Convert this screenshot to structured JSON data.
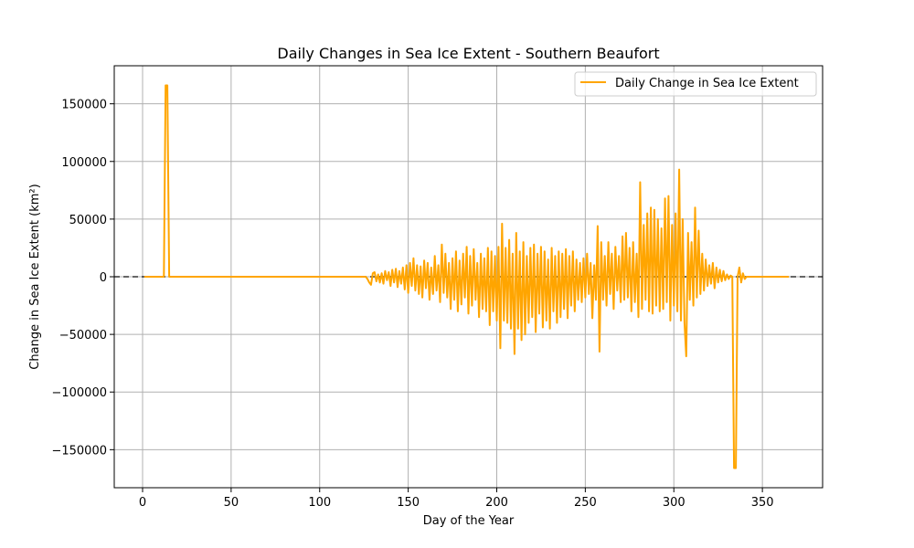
{
  "chart_data": {
    "type": "line",
    "title": "Daily Changes in Sea Ice Extent - Southern Beaufort",
    "xlabel": "Day of the Year",
    "ylabel": "Change in Sea Ice Extent (km²)",
    "xlim": [
      -16,
      384
    ],
    "ylim": [
      -183000,
      183000
    ],
    "xticks": [
      0,
      50,
      100,
      150,
      200,
      250,
      300,
      350
    ],
    "xtick_labels": [
      "0",
      "50",
      "100",
      "150",
      "200",
      "250",
      "300",
      "350"
    ],
    "yticks": [
      150000,
      100000,
      50000,
      0,
      -50000,
      -100000,
      -150000
    ],
    "ytick_labels": [
      "150000",
      "100000",
      "50000",
      "0",
      "−50000",
      "−100000",
      "−150000"
    ],
    "grid": true,
    "legend_position": "top-right",
    "reference_line": {
      "y": 0,
      "style": "dashed",
      "color": "#333333"
    },
    "series": [
      {
        "name": "Daily Change in Sea Ice Extent",
        "color": "#FFA500",
        "x": [
          1,
          2,
          3,
          4,
          5,
          6,
          7,
          8,
          9,
          10,
          11,
          12,
          13,
          14,
          15,
          16,
          17,
          18,
          19,
          20,
          40,
          60,
          80,
          100,
          120,
          126,
          127,
          128,
          129,
          130,
          131,
          132,
          133,
          134,
          135,
          136,
          137,
          138,
          139,
          140,
          141,
          142,
          143,
          144,
          145,
          146,
          147,
          148,
          149,
          150,
          151,
          152,
          153,
          154,
          155,
          156,
          157,
          158,
          159,
          160,
          161,
          162,
          163,
          164,
          165,
          166,
          167,
          168,
          169,
          170,
          171,
          172,
          173,
          174,
          175,
          176,
          177,
          178,
          179,
          180,
          181,
          182,
          183,
          184,
          185,
          186,
          187,
          188,
          189,
          190,
          191,
          192,
          193,
          194,
          195,
          196,
          197,
          198,
          199,
          200,
          201,
          202,
          203,
          204,
          205,
          206,
          207,
          208,
          209,
          210,
          211,
          212,
          213,
          214,
          215,
          216,
          217,
          218,
          219,
          220,
          221,
          222,
          223,
          224,
          225,
          226,
          227,
          228,
          229,
          230,
          231,
          232,
          233,
          234,
          235,
          236,
          237,
          238,
          239,
          240,
          241,
          242,
          243,
          244,
          245,
          246,
          247,
          248,
          249,
          250,
          251,
          252,
          253,
          254,
          255,
          256,
          257,
          258,
          259,
          260,
          261,
          262,
          263,
          264,
          265,
          266,
          267,
          268,
          269,
          270,
          271,
          272,
          273,
          274,
          275,
          276,
          277,
          278,
          279,
          280,
          281,
          282,
          283,
          284,
          285,
          286,
          287,
          288,
          289,
          290,
          291,
          292,
          293,
          294,
          295,
          296,
          297,
          298,
          299,
          300,
          301,
          302,
          303,
          304,
          305,
          306,
          307,
          308,
          309,
          310,
          311,
          312,
          313,
          314,
          315,
          316,
          317,
          318,
          319,
          320,
          321,
          322,
          323,
          324,
          325,
          326,
          327,
          328,
          329,
          330,
          331,
          332,
          333,
          334,
          335,
          336,
          337,
          338,
          339,
          340,
          341,
          342,
          343,
          344,
          345,
          350,
          355,
          360,
          365
        ],
        "y": [
          0,
          0,
          0,
          0,
          0,
          0,
          0,
          0,
          0,
          0,
          0,
          0,
          166000,
          166000,
          0,
          0,
          0,
          0,
          0,
          0,
          0,
          0,
          0,
          0,
          0,
          0,
          -2000,
          -5000,
          -7000,
          3000,
          4000,
          -4000,
          2000,
          -5000,
          3000,
          -6000,
          5000,
          -3000,
          4000,
          -8000,
          6000,
          -5000,
          7000,
          -9000,
          5000,
          -6000,
          8000,
          -11000,
          10000,
          -14000,
          12000,
          -8000,
          16000,
          -12000,
          10000,
          -15000,
          9000,
          -18000,
          14000,
          -10000,
          12000,
          -20000,
          8000,
          -15000,
          18000,
          -12000,
          10000,
          -22000,
          28000,
          -14000,
          20000,
          -18000,
          12000,
          -28000,
          16000,
          -20000,
          22000,
          -30000,
          14000,
          -24000,
          20000,
          -18000,
          26000,
          -32000,
          18000,
          -25000,
          24000,
          -20000,
          12000,
          -35000,
          20000,
          -28000,
          16000,
          -30000,
          25000,
          -42000,
          22000,
          -30000,
          18000,
          -38000,
          26000,
          -62000,
          46000,
          -38000,
          25000,
          -40000,
          32000,
          -45000,
          20000,
          -67000,
          38000,
          -45000,
          22000,
          -55000,
          30000,
          -50000,
          18000,
          -40000,
          25000,
          -35000,
          28000,
          -48000,
          20000,
          -32000,
          26000,
          -44000,
          22000,
          -38000,
          15000,
          -45000,
          25000,
          -30000,
          18000,
          -40000,
          22000,
          -35000,
          20000,
          -28000,
          24000,
          -36000,
          18000,
          -25000,
          22000,
          -30000,
          15000,
          -20000,
          12000,
          -22000,
          16000,
          -18000,
          20000,
          -15000,
          12000,
          -36000,
          10000,
          -20000,
          44000,
          -65000,
          30000,
          -20000,
          18000,
          -25000,
          30000,
          -15000,
          20000,
          -28000,
          26000,
          -12000,
          18000,
          -22000,
          35000,
          -20000,
          38000,
          -18000,
          25000,
          -30000,
          30000,
          -22000,
          20000,
          -35000,
          82000,
          -28000,
          45000,
          -20000,
          55000,
          -30000,
          60000,
          -32000,
          58000,
          -25000,
          50000,
          -30000,
          42000,
          -28000,
          68000,
          -22000,
          70000,
          -38000,
          45000,
          -25000,
          55000,
          -30000,
          93000,
          -38000,
          50000,
          -40000,
          -69000,
          38000,
          -20000,
          30000,
          -25000,
          60000,
          -18000,
          40000,
          -15000,
          20000,
          -12000,
          15000,
          -8000,
          10000,
          -6000,
          12000,
          -10000,
          8000,
          -5000,
          6000,
          -4000,
          5000,
          -3000,
          2000,
          -2000,
          1000,
          0,
          -166000,
          -166000,
          0,
          8000,
          -5000,
          3000,
          -2000,
          0,
          0,
          0,
          0,
          0,
          0,
          0,
          0,
          0
        ]
      }
    ]
  }
}
